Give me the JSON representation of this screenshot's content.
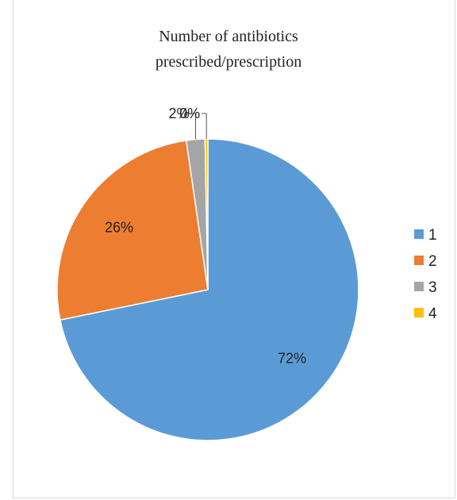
{
  "chart_data": {
    "type": "pie",
    "title_lines": [
      "Number of antibiotics",
      "prescribed/prescription"
    ],
    "categories": [
      "1",
      "2",
      "3",
      "4"
    ],
    "values": [
      72,
      26,
      2,
      0.3
    ],
    "data_labels": [
      "72%",
      "26%",
      "2%",
      "0%"
    ],
    "colors": [
      "#5b9bd5",
      "#ed7d31",
      "#a5a5a5",
      "#ffc000"
    ],
    "legend_position": "right",
    "start_angle_deg": 0,
    "direction": "clockwise"
  }
}
